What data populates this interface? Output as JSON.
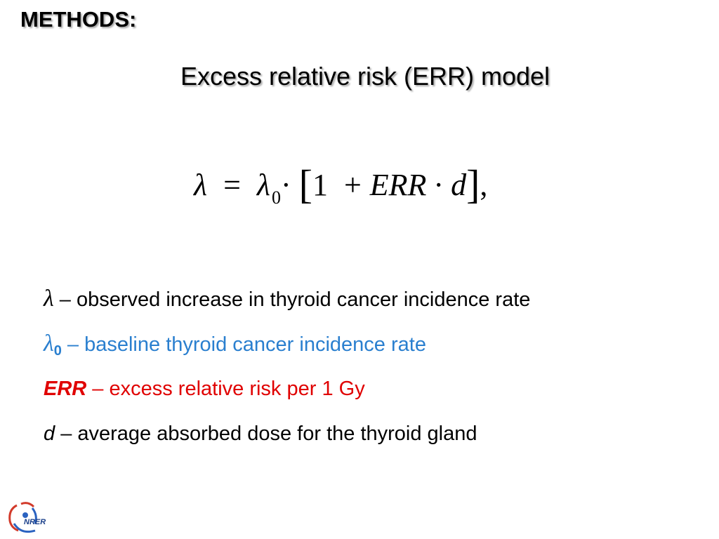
{
  "header": {
    "section": "METHODS:",
    "title": "Excess relative risk (ERR) model"
  },
  "formula": {
    "lambda": "λ",
    "equals": "=",
    "lambda0_base": "λ",
    "lambda0_sub": "0",
    "dot": "·",
    "open_bracket": "[",
    "one": "1",
    "plus": "+",
    "err": "ERR",
    "d": "d",
    "close_bracket": "]",
    "comma": ","
  },
  "definitions": [
    {
      "symbol": "λ",
      "text": " – observed increase in thyroid cancer incidence rate"
    },
    {
      "symbol": "λ",
      "subscript": "0",
      "text": " – baseline thyroid cancer incidence rate"
    },
    {
      "symbol": "ERR",
      "text": " – excess relative risk per 1 Gy"
    },
    {
      "symbol": "d",
      "text": " – average absorbed dose for the thyroid gland"
    }
  ],
  "logo": {
    "text": "NRER"
  },
  "colors": {
    "blue": "#2a7fcf",
    "red": "#e00000"
  }
}
